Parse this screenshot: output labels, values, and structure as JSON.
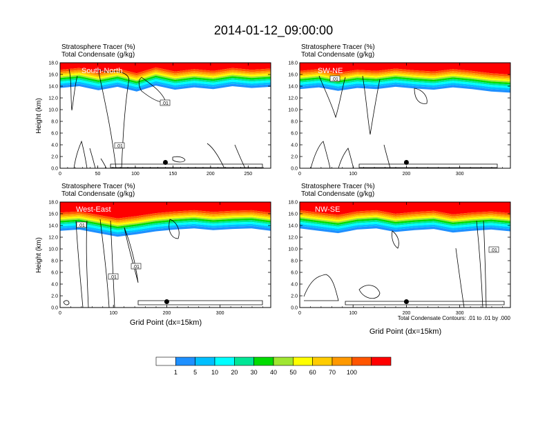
{
  "figure": {
    "title": "2014-01-12_09:00:00",
    "contour_note": "Total Condensate Contours: .01 to .01 by .000"
  },
  "colorbar": {
    "labels": [
      "1",
      "5",
      "10",
      "20",
      "30",
      "40",
      "50",
      "60",
      "70",
      "100"
    ],
    "colors": [
      "#ffffff",
      "#1e90ff",
      "#00bfff",
      "#00ffff",
      "#00e696",
      "#00dc00",
      "#a0e632",
      "#ffff00",
      "#ffcc00",
      "#ff9900",
      "#ff5500",
      "#ff0000"
    ]
  },
  "chart_data": [
    {
      "type": "heatmap",
      "panel": "South-North",
      "title_line1": "Stratosphere Tracer   (%)",
      "title_line2": "Total Condensate   (g/kg)",
      "ylabel": "Height (km)",
      "xlabel": "",
      "xlim": [
        0,
        280
      ],
      "ylim": [
        0,
        18
      ],
      "xticks": [
        "0",
        "50",
        "100",
        "150",
        "200",
        "250"
      ],
      "yticks": [
        "0.0",
        "2.0",
        "4.0",
        "6.0",
        "8.0",
        "10.0",
        "12.0",
        "14.0",
        "16.0",
        "18.0"
      ],
      "marker": [
        140,
        1.0
      ],
      "contour_labels": [
        ".01",
        ".01"
      ],
      "tracer_top_km": [
        16.2,
        16.5,
        15.8,
        16.4,
        15.6,
        16.6,
        15.9,
        16.3,
        16.0,
        16.5,
        16.2,
        16.4
      ],
      "contour_level": ".01"
    },
    {
      "type": "heatmap",
      "panel": "SW-NE",
      "title_line1": "Stratosphere Tracer   (%)",
      "title_line2": "Total Condensate   (g/kg)",
      "ylabel": "",
      "xlabel": "",
      "xlim": [
        0,
        395
      ],
      "ylim": [
        0,
        18
      ],
      "xticks": [
        "0",
        "100",
        "200",
        "300"
      ],
      "yticks": [
        "0.0",
        "2.0",
        "4.0",
        "6.0",
        "8.0",
        "10.0",
        "12.0",
        "14.0",
        "16.0",
        "18.0"
      ],
      "marker": [
        200,
        1.0
      ],
      "contour_labels": [
        ".01"
      ],
      "tracer_top_km": [
        16.0,
        16.3,
        15.7,
        16.2,
        16.0,
        16.4,
        16.1,
        15.9,
        16.3,
        16.0,
        15.6,
        15.4
      ],
      "contour_level": ".01"
    },
    {
      "type": "heatmap",
      "panel": "West-East",
      "title_line1": "Stratosphere Tracer   (%)",
      "title_line2": "Total Condensate   (g/kg)",
      "ylabel": "Height (km)",
      "xlabel": "Grid Point (dx=15km)",
      "xlim": [
        0,
        395
      ],
      "ylim": [
        0,
        18
      ],
      "xticks": [
        "0",
        "100",
        "200",
        "300"
      ],
      "yticks": [
        "0.0",
        "2.0",
        "4.0",
        "6.0",
        "8.0",
        "10.0",
        "12.0",
        "14.0",
        "16.0",
        "18.0"
      ],
      "marker": [
        200,
        1.0
      ],
      "contour_labels": [
        ".01",
        ".01",
        ".01"
      ],
      "tracer_top_km": [
        15.6,
        15.8,
        15.2,
        14.6,
        15.0,
        15.5,
        15.8,
        16.0,
        15.7,
        15.9,
        16.0,
        15.6
      ],
      "contour_level": ".01"
    },
    {
      "type": "heatmap",
      "panel": "NW-SE",
      "title_line1": "Stratosphere Tracer   (%)",
      "title_line2": "Total Condensate   (g/kg)",
      "ylabel": "",
      "xlabel": "Grid Point (dx=15km)",
      "xlim": [
        0,
        395
      ],
      "ylim": [
        0,
        18
      ],
      "xticks": [
        "0",
        "100",
        "200",
        "300"
      ],
      "yticks": [
        "0.0",
        "2.0",
        "4.0",
        "6.0",
        "8.0",
        "10.0",
        "12.0",
        "14.0",
        "16.0",
        "18.0"
      ],
      "marker": [
        200,
        1.0
      ],
      "contour_labels": [
        ".01"
      ],
      "tracer_top_km": [
        16.0,
        15.6,
        15.2,
        15.8,
        16.0,
        15.4,
        15.7,
        15.9,
        15.3,
        15.6,
        15.8,
        15.5
      ],
      "contour_level": ".01"
    }
  ]
}
